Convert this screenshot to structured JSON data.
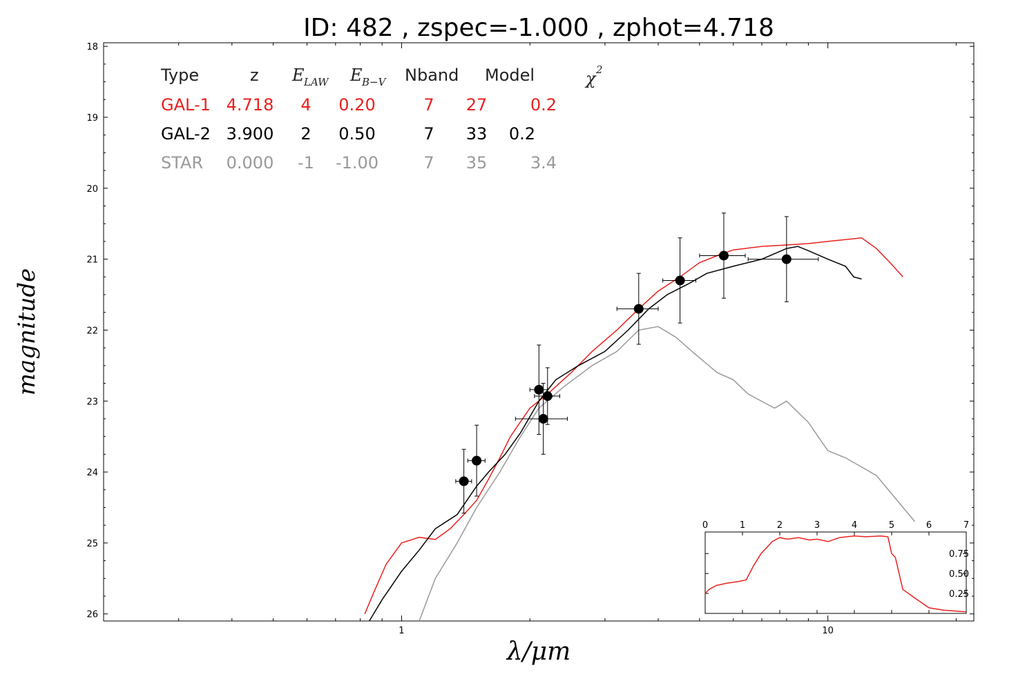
{
  "chart_data": {
    "type": "scatter",
    "title": "ID:  482   , zspec=-1.000 , zphot=4.718",
    "xlabel": "λ/μm",
    "ylabel": "magnitude",
    "x_scale": "log",
    "xlim": [
      0.2,
      22
    ],
    "ylim": [
      26.1,
      17.95
    ],
    "x_tick_labels": [
      "1",
      "10"
    ],
    "y_ticks": [
      "18",
      "19",
      "20",
      "21",
      "22",
      "23",
      "24",
      "25",
      "26"
    ],
    "table": {
      "headers": {
        "type": "Type",
        "z": "z",
        "e_law": "E",
        "e_law_sub": "LAW",
        "e_bv": "E",
        "e_bv_sub": "B−V",
        "nband": "Nband",
        "model": "Model",
        "chi2": "χ",
        "chi2_sup": "2"
      },
      "rows": [
        {
          "type": "GAL-1",
          "z": "4.718",
          "e_law": "4",
          "e_bv": "0.20",
          "nband": "7",
          "model": "27",
          "chi2": "0.2",
          "color": "#e8211e"
        },
        {
          "type": "GAL-2",
          "z": "3.900",
          "e_law": "2",
          "e_bv": "0.50",
          "nband": "7",
          "model": "33",
          "chi2": "0.2",
          "color": "#000000"
        },
        {
          "type": "STAR",
          "z": "0.000",
          "e_law": "-1",
          "e_bv": "-1.00",
          "nband": "7",
          "model": "35",
          "chi2": "3.4",
          "color": "#999999"
        }
      ]
    },
    "series": [
      {
        "row": "GAL-1",
        "color": "#e8211e",
        "x": [
          0.82,
          0.86,
          0.92,
          1.0,
          1.1,
          1.2,
          1.3,
          1.4,
          1.5,
          1.6,
          1.7,
          1.8,
          2.0,
          2.2,
          2.5,
          2.8,
          3.2,
          3.6,
          4.0,
          4.5,
          5.0,
          5.5,
          6.0,
          7.0,
          8.0,
          9.0,
          10.0,
          12.0,
          13.0,
          14.0,
          15.0
        ],
        "y": [
          26.0,
          25.7,
          25.3,
          25.0,
          24.92,
          24.95,
          24.8,
          24.6,
          24.4,
          24.1,
          23.8,
          23.5,
          23.1,
          22.9,
          22.6,
          22.3,
          22.0,
          21.7,
          21.45,
          21.25,
          21.05,
          20.95,
          20.87,
          20.82,
          20.8,
          20.78,
          20.75,
          20.7,
          20.85,
          21.05,
          21.25
        ]
      },
      {
        "row": "GAL-2",
        "color": "#000000",
        "x": [
          0.84,
          0.9,
          1.0,
          1.1,
          1.2,
          1.35,
          1.5,
          1.6,
          1.75,
          1.9,
          2.1,
          2.3,
          2.6,
          3.0,
          3.4,
          3.8,
          4.2,
          4.7,
          5.2,
          6.0,
          7.0,
          8.0,
          8.5,
          9.0,
          10.0,
          11.0,
          11.5,
          12.0
        ],
        "y": [
          26.1,
          25.8,
          25.4,
          25.1,
          24.8,
          24.6,
          24.2,
          24.0,
          23.75,
          23.45,
          23.0,
          22.7,
          22.5,
          22.3,
          22.0,
          21.7,
          21.5,
          21.35,
          21.2,
          21.1,
          21.0,
          20.85,
          20.82,
          20.88,
          21.0,
          21.1,
          21.25,
          21.28
        ]
      },
      {
        "row": "STAR",
        "color": "#999999",
        "x": [
          1.1,
          1.2,
          1.35,
          1.5,
          1.7,
          1.9,
          2.1,
          2.4,
          2.8,
          3.2,
          3.6,
          4.0,
          4.4,
          4.8,
          5.5,
          6.0,
          6.5,
          7.5,
          8.0,
          9.0,
          10.0,
          11.0,
          13.0,
          16.0
        ],
        "y": [
          26.1,
          25.5,
          25.0,
          24.5,
          24.0,
          23.5,
          23.1,
          22.8,
          22.5,
          22.3,
          22.0,
          21.95,
          22.1,
          22.3,
          22.6,
          22.7,
          22.9,
          23.1,
          23.0,
          23.3,
          23.7,
          23.8,
          24.05,
          24.7
        ]
      }
    ],
    "photometry": [
      {
        "x": 1.4,
        "y": 24.13,
        "xerr": 0.06,
        "yerr": 0.45
      },
      {
        "x": 1.5,
        "y": 23.84,
        "xerr": 0.07,
        "yerr": 0.5
      },
      {
        "x": 2.1,
        "y": 22.84,
        "xerr": 0.1,
        "yerr": 0.63
      },
      {
        "x": 2.2,
        "y": 22.93,
        "xerr": 0.15,
        "yerr": 0.4
      },
      {
        "x": 2.15,
        "y": 23.25,
        "xerr": 0.3,
        "yerr": 0.5
      },
      {
        "x": 3.6,
        "y": 21.7,
        "xerr": 0.4,
        "yerr": 0.5
      },
      {
        "x": 4.5,
        "y": 21.3,
        "xerr": 0.4,
        "yerr": 0.6
      },
      {
        "x": 5.7,
        "y": 20.95,
        "xerr": 0.7,
        "yerr": 0.6
      },
      {
        "x": 8.0,
        "y": 21.0,
        "xerr": 1.5,
        "yerr": 0.6
      }
    ],
    "inset": {
      "type": "line",
      "xlim": [
        0,
        7
      ],
      "ylim": [
        0,
        1.02
      ],
      "x_ticks": [
        "0",
        "1",
        "2",
        "3",
        "4",
        "5",
        "6",
        "7"
      ],
      "y_ticks": [
        "0.25",
        "0.50",
        "0.75"
      ],
      "color": "#e8211e",
      "x": [
        0,
        0.1,
        0.3,
        0.6,
        0.9,
        1.1,
        1.3,
        1.5,
        1.8,
        2.0,
        2.2,
        2.5,
        2.8,
        3.0,
        3.3,
        3.6,
        4.0,
        4.3,
        4.7,
        4.9,
        5.0,
        5.1,
        5.3,
        5.6,
        6.0,
        6.4,
        7.0
      ],
      "y": [
        0.25,
        0.3,
        0.35,
        0.38,
        0.4,
        0.42,
        0.6,
        0.75,
        0.9,
        0.95,
        0.93,
        0.95,
        0.92,
        0.93,
        0.9,
        0.95,
        0.97,
        0.96,
        0.97,
        0.96,
        0.75,
        0.7,
        0.3,
        0.2,
        0.07,
        0.04,
        0.02
      ]
    }
  }
}
